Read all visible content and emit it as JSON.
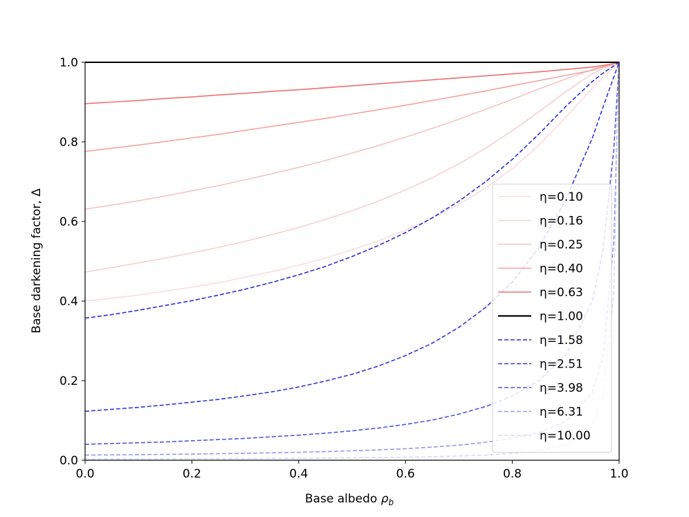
{
  "chart_data": {
    "type": "line",
    "title": "",
    "xlabel": "Base albedo",
    "xlabel_symbol": "ρ",
    "xlabel_subscript": "b",
    "ylabel": "Base darkening factor, Δ",
    "xlim": [
      0.0,
      1.0
    ],
    "ylim": [
      0.0,
      1.0
    ],
    "xticks": [
      "0.0",
      "0.2",
      "0.4",
      "0.6",
      "0.8",
      "1.0"
    ],
    "yticks": [
      "0.0",
      "0.2",
      "0.4",
      "0.6",
      "0.8",
      "1.0"
    ],
    "grid": false,
    "legend_position": "center-right",
    "x": [
      0.0,
      0.05,
      0.1,
      0.15,
      0.2,
      0.25,
      0.3,
      0.35,
      0.4,
      0.45,
      0.5,
      0.55,
      0.6,
      0.65,
      0.7,
      0.75,
      0.8,
      0.85,
      0.9,
      0.95,
      0.97,
      0.99,
      1.0
    ],
    "series": [
      {
        "name": "η=0.10",
        "color": "#f9dddd",
        "dash": "solid",
        "values": [
          0.4,
          0.407,
          0.415,
          0.425,
          0.435,
          0.446,
          0.46,
          0.474,
          0.49,
          0.508,
          0.529,
          0.552,
          0.578,
          0.608,
          0.643,
          0.684,
          0.733,
          0.792,
          0.862,
          0.935,
          0.963,
          0.988,
          1.0
        ]
      },
      {
        "name": "η=0.16",
        "color": "#f7d0d0",
        "dash": "solid",
        "values": [
          0.473,
          0.484,
          0.496,
          0.508,
          0.521,
          0.535,
          0.55,
          0.567,
          0.585,
          0.605,
          0.627,
          0.652,
          0.679,
          0.71,
          0.745,
          0.784,
          0.828,
          0.876,
          0.926,
          0.972,
          0.984,
          0.995,
          1.0
        ]
      },
      {
        "name": "η=0.25",
        "color": "#f6c3c3",
        "dash": "solid",
        "values": [
          0.631,
          0.641,
          0.652,
          0.664,
          0.677,
          0.69,
          0.705,
          0.72,
          0.736,
          0.753,
          0.772,
          0.791,
          0.812,
          0.834,
          0.857,
          0.882,
          0.907,
          0.933,
          0.958,
          0.982,
          0.99,
          0.997,
          1.0
        ]
      },
      {
        "name": "η=0.40",
        "color": "#f3a3a3",
        "dash": "solid",
        "values": [
          0.776,
          0.784,
          0.792,
          0.801,
          0.81,
          0.819,
          0.829,
          0.839,
          0.849,
          0.859,
          0.87,
          0.881,
          0.892,
          0.904,
          0.916,
          0.928,
          0.941,
          0.954,
          0.967,
          0.98,
          0.988,
          0.996,
          1.0
        ]
      },
      {
        "name": "η=0.63",
        "color": "#ee7070",
        "dash": "solid",
        "values": [
          0.896,
          0.9,
          0.904,
          0.909,
          0.913,
          0.918,
          0.922,
          0.927,
          0.931,
          0.936,
          0.941,
          0.946,
          0.951,
          0.956,
          0.961,
          0.966,
          0.971,
          0.976,
          0.982,
          0.988,
          0.992,
          0.997,
          1.0
        ]
      },
      {
        "name": "η=1.00",
        "color": "#000000",
        "dash": "solid",
        "values": [
          1,
          1,
          1,
          1,
          1,
          1,
          1,
          1,
          1,
          1,
          1,
          1,
          1,
          1,
          1,
          1,
          1,
          1,
          1,
          1,
          1,
          1,
          1
        ]
      },
      {
        "name": "η=1.58",
        "color": "#2b2bdd",
        "dash": "dashed",
        "values": [
          0.357,
          0.366,
          0.377,
          0.389,
          0.401,
          0.415,
          0.43,
          0.447,
          0.466,
          0.487,
          0.512,
          0.54,
          0.572,
          0.609,
          0.651,
          0.7,
          0.756,
          0.82,
          0.889,
          0.952,
          0.973,
          0.991,
          1.0
        ]
      },
      {
        "name": "η=2.51",
        "color": "#3535df",
        "dash": "dashed",
        "values": [
          0.123,
          0.128,
          0.133,
          0.139,
          0.146,
          0.153,
          0.162,
          0.172,
          0.184,
          0.199,
          0.216,
          0.237,
          0.263,
          0.294,
          0.334,
          0.384,
          0.448,
          0.535,
          0.655,
          0.81,
          0.888,
          0.963,
          1.0
        ]
      },
      {
        "name": "η=3.98",
        "color": "#5454e3",
        "dash": "dashed",
        "values": [
          0.04,
          0.042,
          0.044,
          0.046,
          0.049,
          0.052,
          0.055,
          0.059,
          0.063,
          0.068,
          0.074,
          0.081,
          0.09,
          0.101,
          0.116,
          0.135,
          0.161,
          0.2,
          0.264,
          0.4,
          0.53,
          0.78,
          1.0
        ]
      },
      {
        "name": "η=6.31",
        "color": "#9898f0",
        "dash": "dashed",
        "values": [
          0.013,
          0.0135,
          0.014,
          0.0148,
          0.0155,
          0.0165,
          0.0175,
          0.0187,
          0.02,
          0.0217,
          0.0237,
          0.026,
          0.029,
          0.033,
          0.038,
          0.045,
          0.055,
          0.07,
          0.097,
          0.17,
          0.26,
          0.55,
          1.0
        ]
      },
      {
        "name": "η=10.00",
        "color": "#d8d8f8",
        "dash": "dashed",
        "values": [
          0.003,
          0.0032,
          0.0034,
          0.0036,
          0.0038,
          0.004,
          0.0043,
          0.0046,
          0.005,
          0.0055,
          0.006,
          0.0068,
          0.0077,
          0.009,
          0.0107,
          0.013,
          0.017,
          0.024,
          0.038,
          0.085,
          0.16,
          0.42,
          1.0
        ]
      }
    ]
  }
}
